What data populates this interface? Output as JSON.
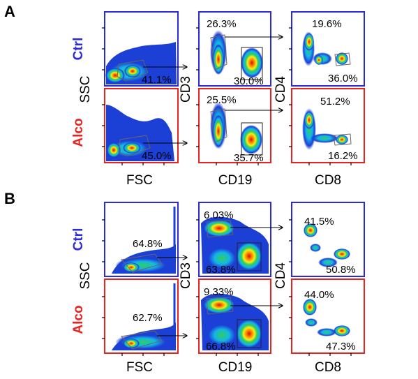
{
  "figure": {
    "colors": {
      "ctrl": "#2b2bdd",
      "alco": "#e8231f",
      "axis": "#000000"
    },
    "sections": [
      {
        "letter": "A",
        "groups": [
          "Ctrl",
          "Alco"
        ],
        "x_axis_labels": [
          "FSC",
          "CD19",
          "CD8"
        ],
        "y_axis_labels": [
          "SSC",
          "CD3",
          "CD4"
        ],
        "rows": [
          {
            "group": "Ctrl",
            "values": [
              "41.1%",
              "26.3%",
              "30.0%",
              "19.6%",
              "36.0%"
            ]
          },
          {
            "group": "Alco",
            "values": [
              "45.0%",
              "25.5%",
              "35.7%",
              "51.2%",
              "16.2%"
            ]
          }
        ]
      },
      {
        "letter": "B",
        "groups": [
          "Ctrl",
          "Alco"
        ],
        "x_axis_labels": [
          "FSC",
          "CD19",
          "CD8"
        ],
        "y_axis_labels": [
          "SSC",
          "CD3",
          "CD4"
        ],
        "rows": [
          {
            "group": "Ctrl",
            "values": [
              "64.8%",
              "6.03%",
              "63.8%",
              "41.5%",
              "50.8%"
            ]
          },
          {
            "group": "Alco",
            "values": [
              "62.7%",
              "9.33%",
              "66.8%",
              "44.0%",
              "47.3%"
            ]
          }
        ]
      }
    ]
  }
}
